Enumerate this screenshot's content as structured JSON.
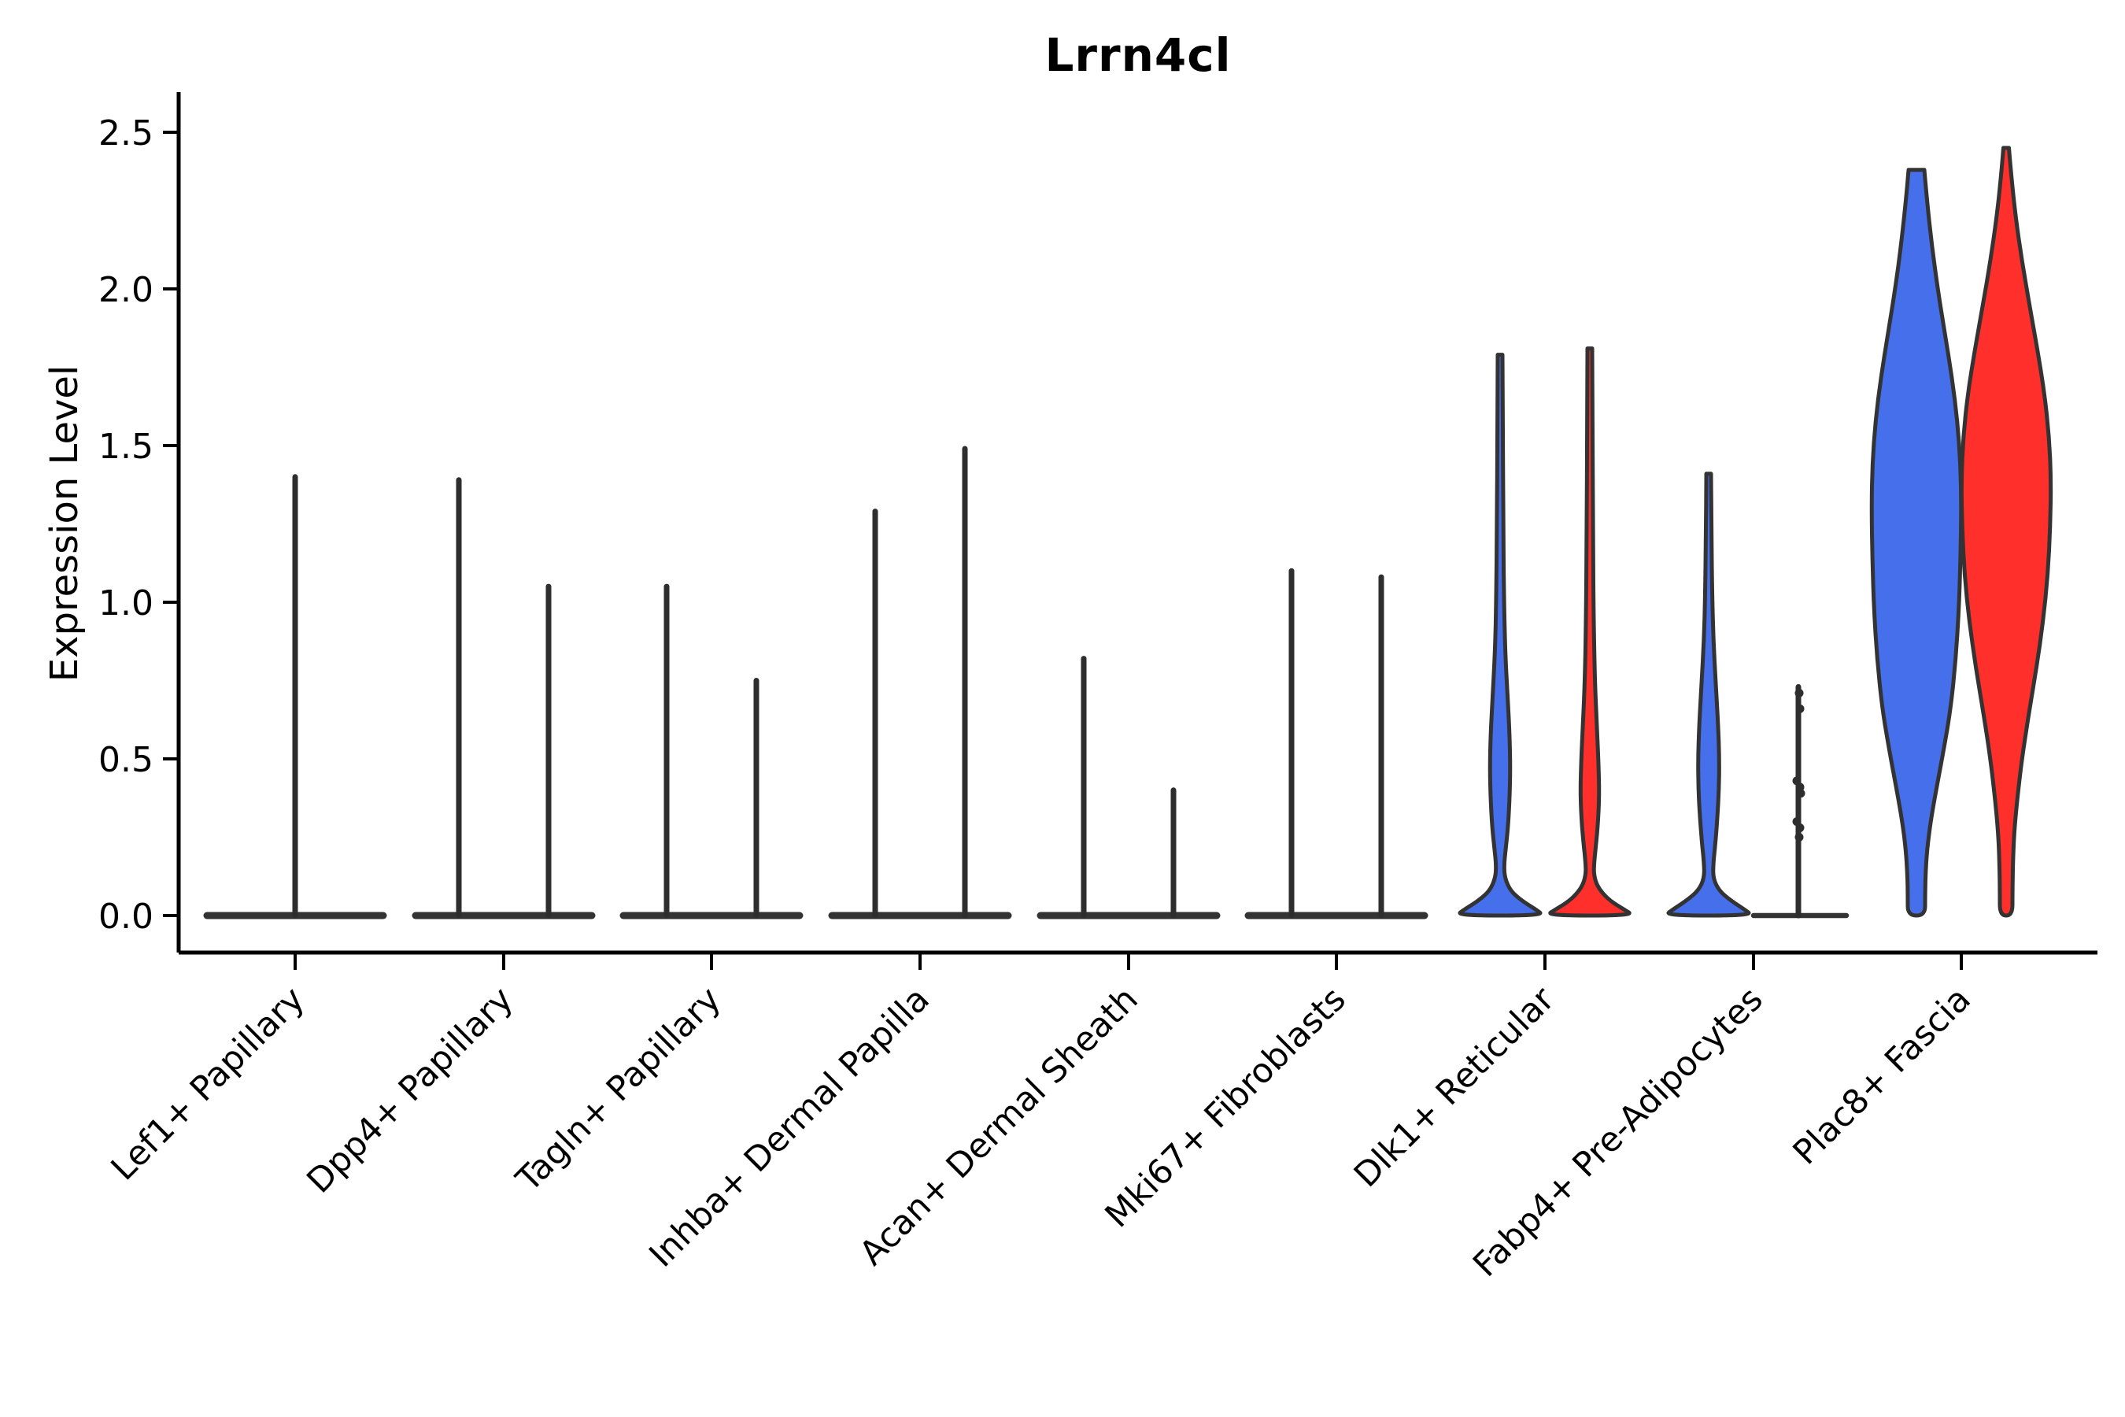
{
  "chart_data": {
    "type": "violin",
    "title": "Lrrn4cl",
    "ylabel": "Expression Level",
    "xlabel": "",
    "ylim": [
      0,
      2.5
    ],
    "grid": false,
    "legend": "none",
    "background_color": "#ffffff",
    "outline_color": "#333333",
    "spike_color": "#2e2e2e",
    "axis_color": "#000000",
    "yticks": [
      {
        "label": "0.0",
        "value": 0.0
      },
      {
        "label": "0.5",
        "value": 0.5
      },
      {
        "label": "1.0",
        "value": 1.0
      },
      {
        "label": "1.5",
        "value": 1.5
      },
      {
        "label": "2.0",
        "value": 2.0
      },
      {
        "label": "2.5",
        "value": 2.5
      }
    ],
    "series": [
      {
        "id": "blue",
        "color": "#466FEB"
      },
      {
        "id": "red",
        "color": "#FF2F2B"
      }
    ],
    "categories": [
      "Lef1+ Papillary",
      "Dpp4+ Papillary",
      "Tagln+ Papillary",
      "Inhba+ Dermal Papilla",
      "Acan+ Dermal Sheath",
      "Mki67+ Fibroblasts",
      "Dlk1+ Reticular",
      "Fabp4+ Pre-Adipocytes",
      "Plac8+ Fascia"
    ],
    "groups": [
      {
        "category": "Lef1+ Papillary",
        "base": "full",
        "violins": [
          {
            "series": "blue",
            "kind": "spike",
            "pos": "center",
            "max": 1.4
          }
        ]
      },
      {
        "category": "Dpp4+ Papillary",
        "base": "full",
        "violins": [
          {
            "series": "blue",
            "kind": "spike",
            "pos": "left",
            "max": 1.39
          },
          {
            "series": "red",
            "kind": "spike",
            "pos": "right",
            "max": 1.05
          }
        ]
      },
      {
        "category": "Tagln+ Papillary",
        "base": "full",
        "violins": [
          {
            "series": "blue",
            "kind": "spike",
            "pos": "left",
            "max": 1.05
          },
          {
            "series": "red",
            "kind": "spike",
            "pos": "right",
            "max": 0.75
          }
        ]
      },
      {
        "category": "Inhba+ Dermal Papilla",
        "base": "full",
        "violins": [
          {
            "series": "blue",
            "kind": "spike",
            "pos": "left",
            "max": 1.29
          },
          {
            "series": "red",
            "kind": "spike",
            "pos": "right",
            "max": 1.49
          }
        ]
      },
      {
        "category": "Acan+ Dermal Sheath",
        "base": "full",
        "violins": [
          {
            "series": "blue",
            "kind": "spike",
            "pos": "left",
            "max": 0.82
          },
          {
            "series": "red",
            "kind": "spike",
            "pos": "right",
            "max": 0.4
          }
        ]
      },
      {
        "category": "Mki67+ Fibroblasts",
        "base": "full",
        "violins": [
          {
            "series": "blue",
            "kind": "spike",
            "pos": "left",
            "max": 1.1
          },
          {
            "series": "red",
            "kind": "spike",
            "pos": "right",
            "max": 1.08
          }
        ]
      },
      {
        "category": "Dlk1+ Reticular",
        "base": "none",
        "violins": [
          {
            "series": "blue",
            "kind": "density",
            "pos": "left",
            "max": 1.79,
            "profile": [
              [
                1.79,
                3
              ],
              [
                1.55,
                3.5
              ],
              [
                1.25,
                4
              ],
              [
                1.0,
                5
              ],
              [
                0.84,
                6.5
              ],
              [
                0.7,
                9.5
              ],
              [
                0.58,
                12
              ],
              [
                0.47,
                13
              ],
              [
                0.37,
                12
              ],
              [
                0.28,
                10
              ],
              [
                0.21,
                7
              ],
              [
                0.16,
                5
              ],
              [
                0.12,
                6
              ],
              [
                0.08,
                13
              ],
              [
                0.05,
                26
              ],
              [
                0.02,
                45
              ],
              [
                0,
                56
              ]
            ]
          },
          {
            "series": "red",
            "kind": "density",
            "pos": "right",
            "max": 1.81,
            "profile": [
              [
                1.81,
                3
              ],
              [
                1.55,
                3.5
              ],
              [
                1.2,
                4
              ],
              [
                0.92,
                5
              ],
              [
                0.74,
                6.5
              ],
              [
                0.6,
                9
              ],
              [
                0.49,
                11
              ],
              [
                0.39,
                12
              ],
              [
                0.3,
                10.5
              ],
              [
                0.23,
                8
              ],
              [
                0.17,
                5.5
              ],
              [
                0.13,
                5
              ],
              [
                0.09,
                10
              ],
              [
                0.05,
                24
              ],
              [
                0.02,
                43
              ],
              [
                0,
                56
              ]
            ]
          }
        ]
      },
      {
        "category": "Fabp4+ Pre-Adipocytes",
        "base": "right-half",
        "violins": [
          {
            "series": "blue",
            "kind": "density",
            "pos": "left",
            "max": 1.41,
            "profile": [
              [
                1.41,
                3
              ],
              [
                1.22,
                3.5
              ],
              [
                1.02,
                4.5
              ],
              [
                0.88,
                6
              ],
              [
                0.74,
                9
              ],
              [
                0.61,
                12
              ],
              [
                0.5,
                13.5
              ],
              [
                0.4,
                13
              ],
              [
                0.31,
                11
              ],
              [
                0.23,
                8.5
              ],
              [
                0.17,
                6
              ],
              [
                0.12,
                5.5
              ],
              [
                0.08,
                13
              ],
              [
                0.05,
                27
              ],
              [
                0.02,
                45
              ],
              [
                0,
                56
              ]
            ]
          },
          {
            "series": "red",
            "kind": "spike-points",
            "pos": "right",
            "max": 0.73,
            "points": [
              [
                0.71,
                1
              ],
              [
                0.66,
                2
              ],
              [
                0.43,
                -2
              ],
              [
                0.41,
                2
              ],
              [
                0.39,
                3
              ],
              [
                0.3,
                -2
              ],
              [
                0.28,
                2
              ],
              [
                0.25,
                1
              ]
            ]
          }
        ]
      },
      {
        "category": "Plac8+ Fascia",
        "base": "none",
        "violins": [
          {
            "series": "blue",
            "kind": "density",
            "pos": "left",
            "max": 2.38,
            "profile": [
              [
                2.38,
                10
              ],
              [
                2.28,
                13.5
              ],
              [
                2.14,
                19.5
              ],
              [
                2.0,
                27
              ],
              [
                1.86,
                36
              ],
              [
                1.72,
                45
              ],
              [
                1.58,
                52
              ],
              [
                1.44,
                56
              ],
              [
                1.3,
                57
              ],
              [
                1.14,
                56
              ],
              [
                0.98,
                54
              ],
              [
                0.82,
                50
              ],
              [
                0.66,
                43.5
              ],
              [
                0.52,
                34
              ],
              [
                0.4,
                25
              ],
              [
                0.3,
                18
              ],
              [
                0.21,
                13.5
              ],
              [
                0.13,
                11.5
              ],
              [
                0.06,
                11
              ],
              [
                0,
                11
              ]
            ]
          },
          {
            "series": "red",
            "kind": "density",
            "pos": "right",
            "max": 2.45,
            "profile": [
              [
                2.45,
                3.5
              ],
              [
                2.36,
                6.5
              ],
              [
                2.23,
                12
              ],
              [
                2.09,
                20
              ],
              [
                1.95,
                29.5
              ],
              [
                1.81,
                39.5
              ],
              [
                1.67,
                48.5
              ],
              [
                1.53,
                54.5
              ],
              [
                1.39,
                57
              ],
              [
                1.24,
                56
              ],
              [
                1.09,
                53
              ],
              [
                0.94,
                47
              ],
              [
                0.79,
                38.5
              ],
              [
                0.64,
                28.5
              ],
              [
                0.5,
                20
              ],
              [
                0.37,
                14
              ],
              [
                0.26,
                10
              ],
              [
                0.16,
                8.5
              ],
              [
                0.07,
                8
              ],
              [
                0,
                8
              ]
            ]
          }
        ]
      }
    ]
  }
}
